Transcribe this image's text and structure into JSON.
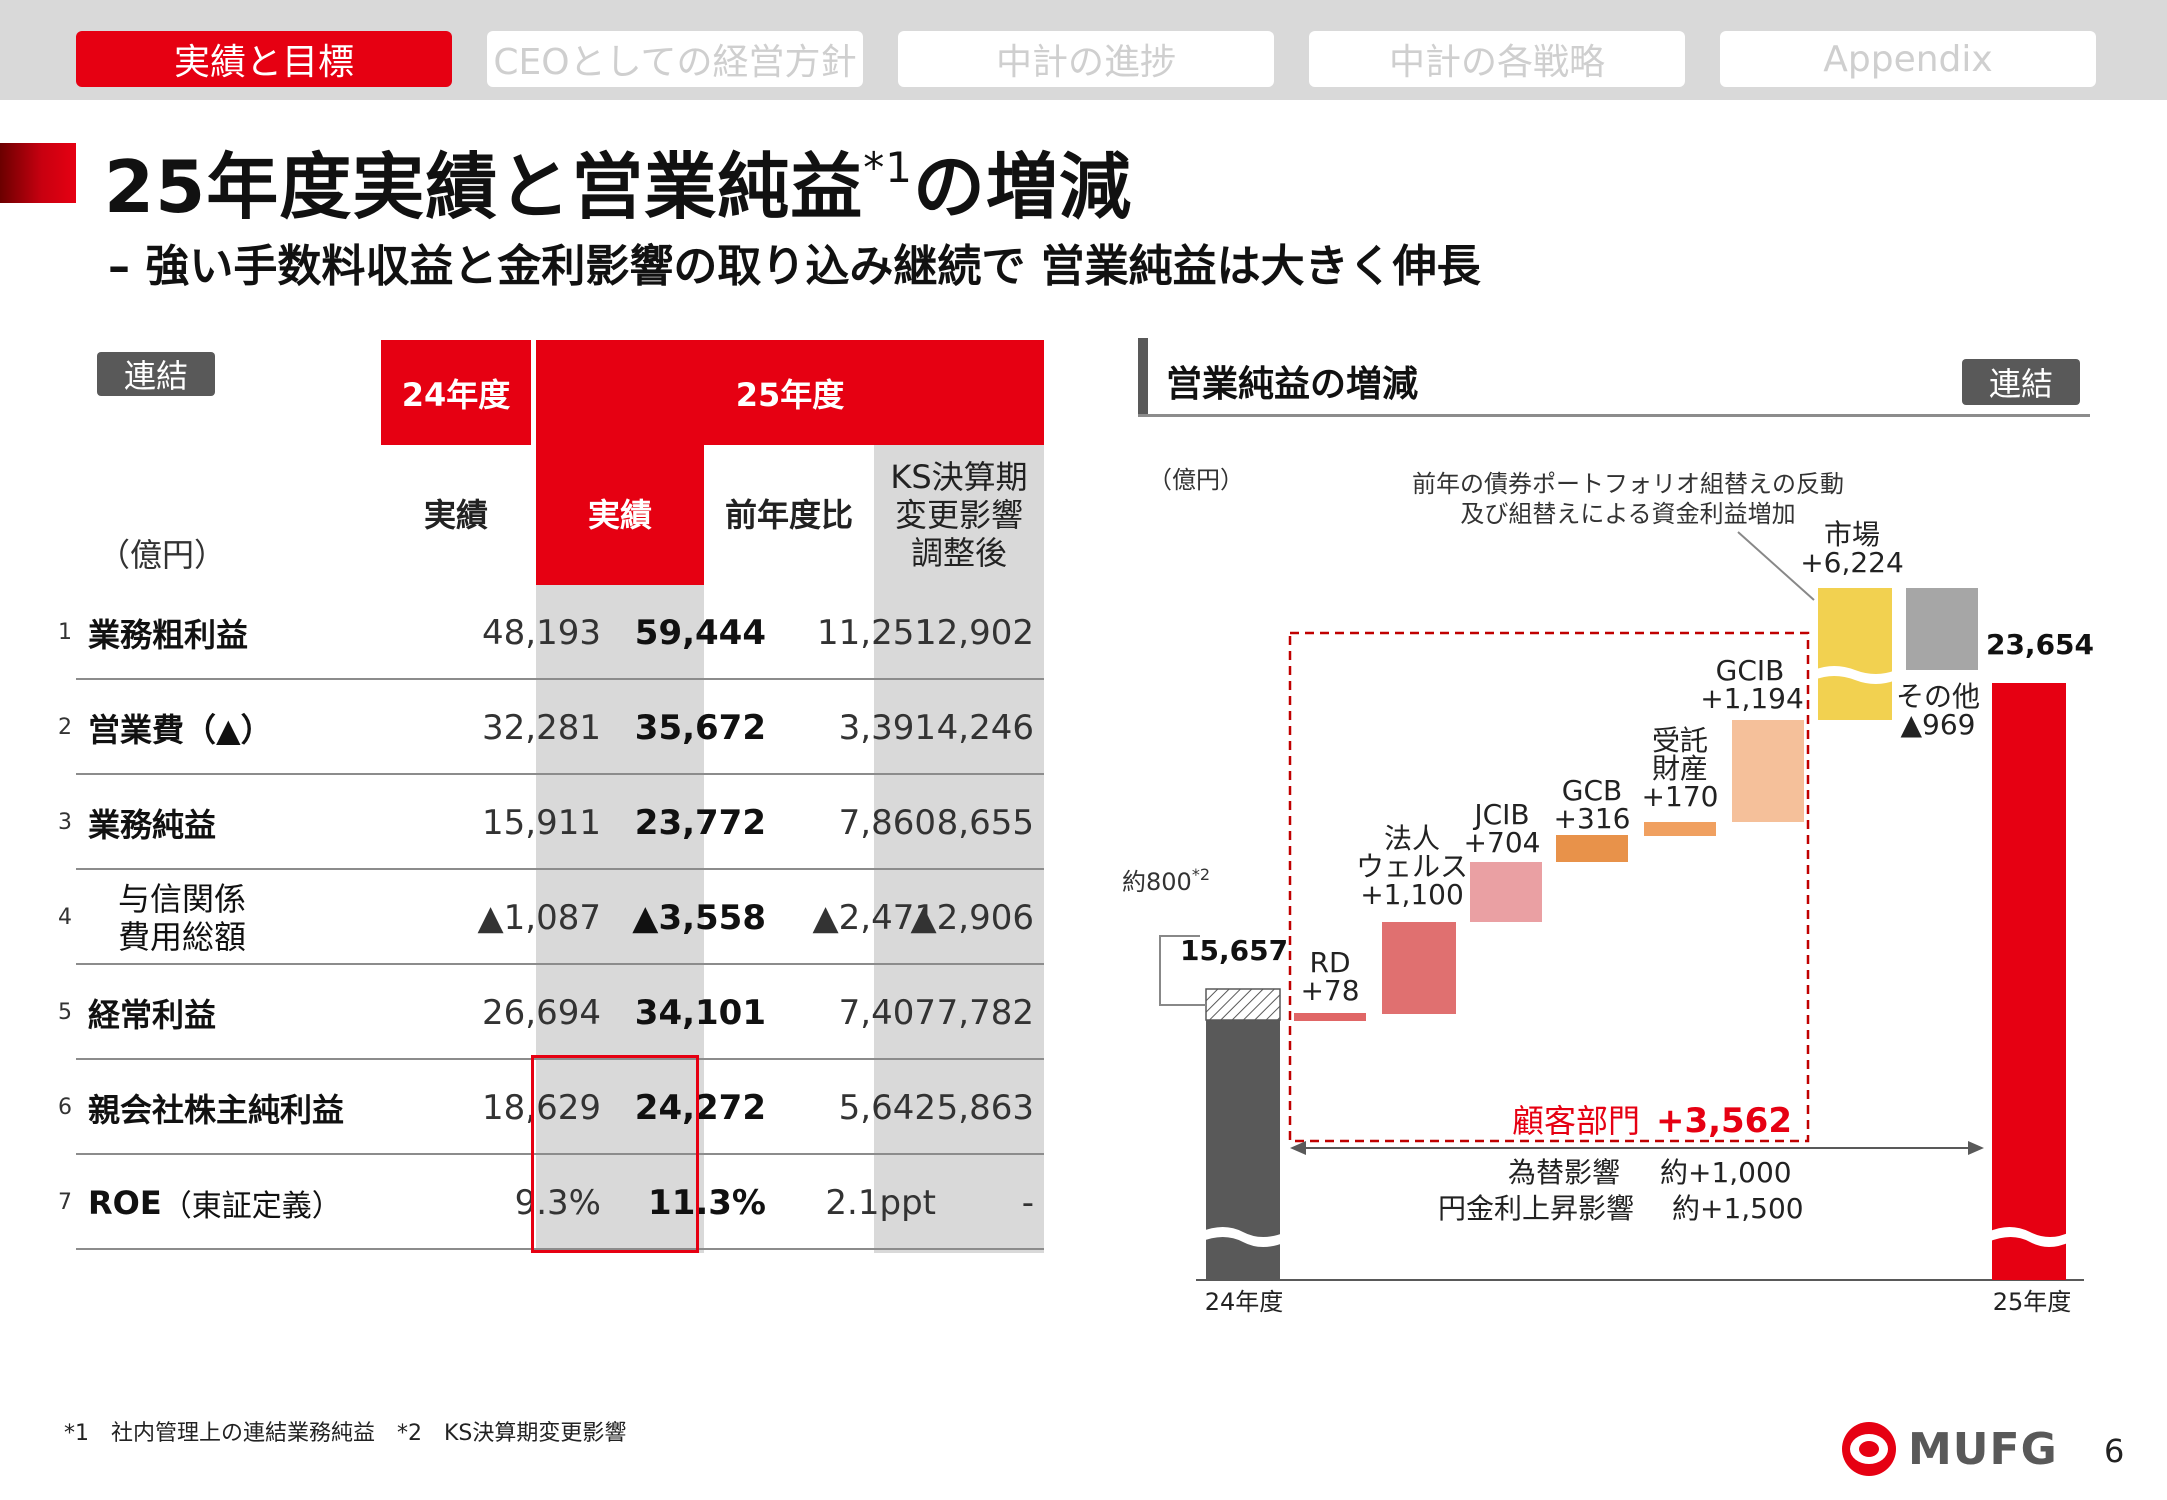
{
  "nav": {
    "tabs": [
      {
        "label": "実績と目標",
        "active": true
      },
      {
        "label": "CEOとしての経営方針",
        "active": false
      },
      {
        "label": "中計の進捗",
        "active": false
      },
      {
        "label": "中計の各戦略",
        "active": false
      },
      {
        "label": "Appendix",
        "active": false
      }
    ]
  },
  "title": {
    "main": "25年度実績と営業純益",
    "sup": "*1",
    "tail": "の増減",
    "subtitle": "– 強い手数料収益と金利影響の取り込み継続で 営業純益は大きく伸長"
  },
  "table": {
    "badge": "連結",
    "unit": "（億円）",
    "group_24": "24年度",
    "group_25": "25年度",
    "col_actual_24": "実績",
    "col_actual_25": "実績",
    "col_yoy": "前年度比",
    "col_ks": [
      "KS決算期",
      "変更影響",
      "調整後"
    ],
    "rows": [
      {
        "no": "1",
        "label": "業務粗利益",
        "note": "",
        "v24": "48,193",
        "v25": "59,444",
        "yoy": "11,251",
        "ks": "12,902"
      },
      {
        "no": "2",
        "label": "営業費（▲）",
        "note": "",
        "v24": "32,281",
        "v25": "35,672",
        "yoy": "3,391",
        "ks": "4,246"
      },
      {
        "no": "3",
        "label": "業務純益",
        "note": "",
        "v24": "15,911",
        "v25": "23,772",
        "yoy": "7,860",
        "ks": "8,655"
      },
      {
        "no": "4",
        "label": "与信関係",
        "label2": "費用総額",
        "note": "",
        "v24": "▲1,087",
        "v25": "▲3,558",
        "yoy": "▲2,471",
        "ks": "▲2,906"
      },
      {
        "no": "5",
        "label": "経常利益",
        "note": "",
        "v24": "26,694",
        "v25": "34,101",
        "yoy": "7,407",
        "ks": "7,782"
      },
      {
        "no": "6",
        "label": "親会社株主純利益",
        "note": "",
        "v24": "18,629",
        "v25": "24,272",
        "yoy": "5,642",
        "ks": "5,863"
      },
      {
        "no": "7",
        "label": "ROE",
        "note": "（東証定義）",
        "v24": "9.3%",
        "v25": "11.3%",
        "yoy": "2.1ppt",
        "ks": "-"
      }
    ]
  },
  "chart": {
    "heading": "営業純益の増減",
    "badge": "連結",
    "unit": "（億円）",
    "annotation_line1": "前年の債券ポートフォリオ組替えの反動",
    "annotation_line2": "及び組替えによる資金利益増加",
    "ks_note": "約800",
    "ks_note_sup": "*2",
    "start_label": "15,657",
    "end_label": "23,654",
    "x_start": "24年度",
    "x_end": "25年度",
    "customer_label": "顧客部門",
    "customer_value": "+3,562",
    "fx_label": "為替影響",
    "fx_value": "約+1,000",
    "rate_label": "円金利上昇影響",
    "rate_value": "約+1,500",
    "colors": {
      "start": "#595959",
      "end": "#e60012",
      "RD": "#e06666",
      "houjin": "#e07070",
      "JCIB": "#eaa0a3",
      "GCB": "#e8924a",
      "jutaku": "#f0a060",
      "GCIB": "#f5c09a",
      "market": "#f2d150",
      "other": "#a6a6a6",
      "dashed": "#c00000"
    }
  },
  "chart_data": {
    "type": "bar",
    "title": "営業純益の増減",
    "ylabel": "（億円）",
    "categories": [
      "24年度",
      "RD",
      "法人ウェルス",
      "JCIB",
      "GCB",
      "受託財産",
      "GCIB",
      "市場",
      "その他",
      "25年度"
    ],
    "labels": [
      "15,657",
      "RD +78",
      "法人 ウェルス +1,100",
      "JCIB +704",
      "GCB +316",
      "受託 財産 +170",
      "GCIB +1,194",
      "市場 +6,224",
      "その他 ▲969",
      "23,654"
    ],
    "values": [
      15657,
      78,
      1100,
      704,
      316,
      170,
      1194,
      6224,
      -969,
      23654
    ]
  },
  "footnote": "*1　社内管理上の連結業務純益　*2　KS決算期変更影響",
  "page_number": "6",
  "logo": "MUFG"
}
